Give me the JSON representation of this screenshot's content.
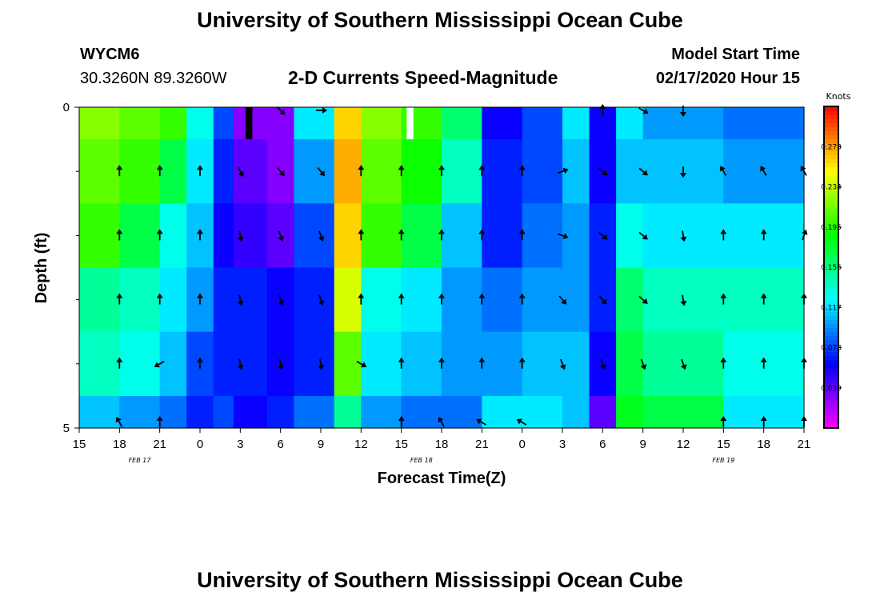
{
  "header": {
    "title": "University of Southern Mississippi Ocean Cube",
    "station": "WYCM6",
    "coords": "30.3260N 89.3260W",
    "chart_title": "2-D Currents Speed-Magnitude",
    "model_label": "Model Start Time",
    "model_time": "02/17/2020 Hour 15"
  },
  "footer": {
    "title": "University of Southern Mississippi Ocean Cube"
  },
  "chart_data": {
    "type": "heatmap",
    "title": "2-D Currents Speed-Magnitude",
    "xlabel": "Forecast Time(Z)",
    "ylabel": "Depth (ft)",
    "x_ticks": [
      "15",
      "18",
      "21",
      "0",
      "3",
      "6",
      "9",
      "12",
      "15",
      "18",
      "21",
      "0",
      "3",
      "6",
      "9",
      "12",
      "15",
      "18",
      "21"
    ],
    "date_labels": [
      {
        "label": "FEB 17",
        "tick_index": 1.5
      },
      {
        "label": "FEB 18",
        "tick_index": 8.5
      },
      {
        "label": "FEB 19",
        "tick_index": 16
      }
    ],
    "y_range": [
      0,
      5
    ],
    "y_tick_labels": [
      {
        "value": 0,
        "label": "0"
      },
      {
        "value": 5,
        "label": "5"
      }
    ],
    "y_minor_ticks": [
      1,
      2,
      3,
      4
    ],
    "x_range_hours": [
      0,
      54
    ],
    "colorbar": {
      "title": "Knots",
      "range": [
        0,
        0.312
      ],
      "tick_values": [
        0.039,
        0.078,
        0.117,
        0.156,
        0.195,
        0.234,
        0.273
      ],
      "tick_labels": [
        "0.039",
        "0.078",
        "0.117",
        "0.156",
        "0.195",
        "0.234",
        "0.273"
      ]
    },
    "depth_rows": [
      {
        "y0": 0,
        "y1": 0.5
      },
      {
        "y0": 0.5,
        "y1": 1.5
      },
      {
        "y0": 1.5,
        "y1": 2.5
      },
      {
        "y0": 2.5,
        "y1": 3.5
      },
      {
        "y0": 3.5,
        "y1": 4.5
      },
      {
        "y0": 4.5,
        "y1": 5
      }
    ],
    "speed_segments": [
      {
        "h0": 0,
        "h1": 3,
        "v": [
          0.22,
          0.21,
          0.2,
          0.15,
          0.14,
          0.11
        ]
      },
      {
        "h0": 3,
        "h1": 6,
        "v": [
          0.21,
          0.2,
          0.17,
          0.14,
          0.13,
          0.1
        ]
      },
      {
        "h0": 6,
        "h1": 8,
        "v": [
          0.2,
          0.17,
          0.13,
          0.12,
          0.11,
          0.09
        ]
      },
      {
        "h0": 8,
        "h1": 10,
        "v": [
          0.13,
          0.12,
          0.11,
          0.1,
          0.08,
          0.07
        ]
      },
      {
        "h0": 10,
        "h1": 11.5,
        "v": [
          0.08,
          0.07,
          0.06,
          0.07,
          0.07,
          0.08
        ]
      },
      {
        "h0": 11.5,
        "h1": 14,
        "v": [
          0.03,
          0.04,
          0.05,
          0.07,
          0.07,
          0.06
        ]
      },
      {
        "h0": 14,
        "h1": 16,
        "v": [
          0.03,
          0.03,
          0.04,
          0.06,
          0.06,
          0.07
        ]
      },
      {
        "h0": 16,
        "h1": 19,
        "v": [
          0.12,
          0.1,
          0.08,
          0.07,
          0.07,
          0.09
        ]
      },
      {
        "h0": 19,
        "h1": 21,
        "v": [
          0.26,
          0.27,
          0.26,
          0.24,
          0.21,
          0.15
        ]
      },
      {
        "h0": 21,
        "h1": 24,
        "v": [
          0.22,
          0.21,
          0.2,
          0.13,
          0.12,
          0.1
        ]
      },
      {
        "h0": 24,
        "h1": 27,
        "v": [
          0.2,
          0.19,
          0.17,
          0.12,
          0.11,
          0.09
        ]
      },
      {
        "h0": 27,
        "h1": 30,
        "v": [
          0.16,
          0.14,
          0.11,
          0.1,
          0.1,
          0.09
        ]
      },
      {
        "h0": 30,
        "h1": 33,
        "v": [
          0.06,
          0.07,
          0.07,
          0.09,
          0.1,
          0.12
        ]
      },
      {
        "h0": 33,
        "h1": 36,
        "v": [
          0.08,
          0.08,
          0.09,
          0.1,
          0.11,
          0.12
        ]
      },
      {
        "h0": 36,
        "h1": 38,
        "v": [
          0.12,
          0.11,
          0.1,
          0.1,
          0.11,
          0.11
        ]
      },
      {
        "h0": 38,
        "h1": 40,
        "v": [
          0.06,
          0.06,
          0.07,
          0.07,
          0.06,
          0.04
        ]
      },
      {
        "h0": 40,
        "h1": 42,
        "v": [
          0.12,
          0.11,
          0.13,
          0.16,
          0.17,
          0.18
        ]
      },
      {
        "h0": 42,
        "h1": 48,
        "v": [
          0.1,
          0.11,
          0.12,
          0.14,
          0.15,
          0.17
        ]
      },
      {
        "h0": 48,
        "h1": 54,
        "v": [
          0.09,
          0.1,
          0.12,
          0.14,
          0.13,
          0.12
        ]
      }
    ],
    "missing_cells": [
      {
        "h0": 12.4,
        "h1": 12.9,
        "y0": 0,
        "y1": 0.5,
        "color": "#000000"
      },
      {
        "h0": 24.4,
        "h1": 24.9,
        "y0": 0,
        "y1": 0.5,
        "color": "#ffffff"
      }
    ],
    "vector_depths": [
      0,
      1,
      2,
      3,
      4,
      5
    ],
    "vector_hours": [
      0,
      3,
      6,
      9,
      12,
      15,
      18,
      21,
      24,
      27,
      30,
      33,
      36,
      39,
      42,
      45,
      48,
      51,
      54
    ],
    "vectors_deg": [
      [
        0,
        0,
        0,
        0,
        0,
        135,
        90,
        0,
        0,
        0,
        0,
        0,
        90,
        0,
        120,
        180,
        0,
        0,
        0
      ],
      [
        0,
        0,
        0,
        0,
        150,
        140,
        140,
        0,
        0,
        0,
        0,
        0,
        70,
        130,
        130,
        180,
        330,
        330,
        330
      ],
      [
        0,
        0,
        0,
        0,
        170,
        160,
        160,
        0,
        0,
        0,
        0,
        0,
        110,
        130,
        130,
        170,
        0,
        0,
        20
      ],
      [
        0,
        0,
        0,
        0,
        170,
        160,
        160,
        0,
        0,
        0,
        0,
        0,
        140,
        140,
        130,
        170,
        0,
        0,
        0
      ],
      [
        0,
        0,
        240,
        0,
        170,
        170,
        170,
        120,
        0,
        0,
        0,
        0,
        160,
        160,
        160,
        160,
        0,
        0,
        0
      ],
      [
        330,
        330,
        0,
        0,
        0,
        0,
        0,
        0,
        0,
        330,
        300,
        300,
        0,
        0,
        0,
        0,
        0,
        0,
        0
      ]
    ],
    "vectors_present": [
      [
        0,
        0,
        0,
        0,
        0,
        1,
        1,
        0,
        0,
        0,
        0,
        0,
        0,
        1,
        1,
        1,
        0,
        0,
        0
      ],
      [
        0,
        1,
        1,
        1,
        1,
        1,
        1,
        1,
        1,
        1,
        1,
        1,
        1,
        1,
        1,
        1,
        1,
        1,
        1
      ],
      [
        0,
        1,
        1,
        1,
        1,
        1,
        1,
        1,
        1,
        1,
        1,
        1,
        1,
        1,
        1,
        1,
        1,
        1,
        1
      ],
      [
        0,
        1,
        1,
        1,
        1,
        1,
        1,
        1,
        1,
        1,
        1,
        1,
        1,
        1,
        1,
        1,
        1,
        1,
        1
      ],
      [
        0,
        1,
        1,
        1,
        1,
        1,
        1,
        1,
        1,
        1,
        1,
        1,
        1,
        1,
        1,
        1,
        1,
        1,
        1
      ],
      [
        0,
        1,
        1,
        0,
        0,
        0,
        0,
        0,
        1,
        1,
        1,
        1,
        0,
        0,
        0,
        0,
        1,
        1,
        1
      ]
    ]
  }
}
